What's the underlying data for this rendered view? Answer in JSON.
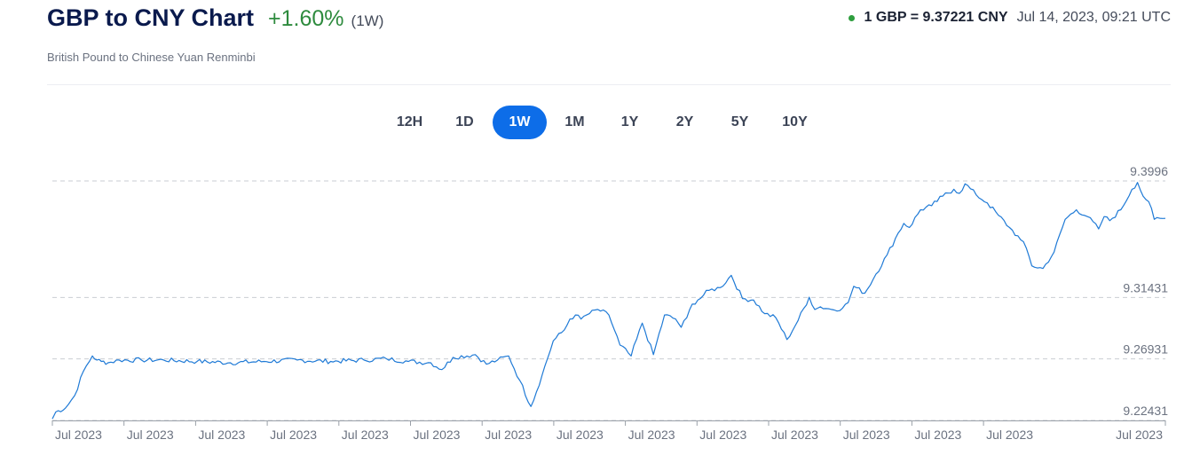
{
  "header": {
    "title": "GBP to CNY Chart",
    "change": "+1.60%",
    "period": "(1W)",
    "subtitle": "British Pound to Chinese Yuan Renminbi"
  },
  "rate": {
    "text": "1 GBP = 9.37221 CNY",
    "timestamp": "Jul 14, 2023, 09:21 UTC",
    "status_color": "#2e9e3e"
  },
  "ranges": [
    {
      "label": "12H",
      "active": false
    },
    {
      "label": "1D",
      "active": false
    },
    {
      "label": "1W",
      "active": true
    },
    {
      "label": "1M",
      "active": false
    },
    {
      "label": "1Y",
      "active": false
    },
    {
      "label": "2Y",
      "active": false
    },
    {
      "label": "5Y",
      "active": false
    },
    {
      "label": "10Y",
      "active": false
    }
  ],
  "colors": {
    "accent": "#0d6de8",
    "line": "#1f7ad6",
    "positive": "#2e8b3e"
  },
  "chart_data": {
    "type": "line",
    "ylim": [
      9.22431,
      9.3996
    ],
    "y_tick_labels": [
      "9.3996",
      "9.31431",
      "9.26931",
      "9.22431"
    ],
    "y_tick_values": [
      9.3996,
      9.31431,
      9.26931,
      9.22431
    ],
    "x_tick_labels": [
      "Jul 2023",
      "Jul 2023",
      "Jul 2023",
      "Jul 2023",
      "Jul 2023",
      "Jul 2023",
      "Jul 2023",
      "Jul 2023",
      "Jul 2023",
      "Jul 2023",
      "Jul 2023",
      "Jul 2023",
      "Jul 2023",
      "Jul 2023",
      "Jul 2023"
    ],
    "grid": "dashed-horizontal",
    "series": [
      {
        "x": [
          0,
          0.003,
          0.012,
          0.02,
          0.028,
          0.036,
          0.04,
          0.044,
          0.05,
          0.06,
          0.08,
          0.1,
          0.13,
          0.16,
          0.19,
          0.22,
          0.25,
          0.28,
          0.3,
          0.32,
          0.34,
          0.35,
          0.36,
          0.38,
          0.39,
          0.4,
          0.41,
          0.42,
          0.43,
          0.44,
          0.45,
          0.46,
          0.465,
          0.47,
          0.475,
          0.48,
          0.49,
          0.5,
          0.51,
          0.52,
          0.53,
          0.54,
          0.55,
          0.56,
          0.565,
          0.57,
          0.575,
          0.58,
          0.59,
          0.6,
          0.61,
          0.62,
          0.63,
          0.64,
          0.65,
          0.66,
          0.67,
          0.68,
          0.685,
          0.69,
          0.7,
          0.71,
          0.715,
          0.72,
          0.73,
          0.74,
          0.75,
          0.76,
          0.765,
          0.77,
          0.78,
          0.79,
          0.8,
          0.81,
          0.815,
          0.82,
          0.83,
          0.84,
          0.85,
          0.86,
          0.87,
          0.875,
          0.88,
          0.89,
          0.9,
          0.91,
          0.92,
          0.93,
          0.94,
          0.945,
          0.95,
          0.96,
          0.97,
          0.975,
          0.98,
          0.985,
          0.99,
          1.0
        ],
        "y": [
          9.2255,
          9.2305,
          9.2335,
          9.2425,
          9.2605,
          9.2715,
          9.2685,
          9.2675,
          9.2665,
          9.2685,
          9.2685,
          9.2685,
          9.2675,
          9.2665,
          9.2675,
          9.2685,
          9.2675,
          9.2685,
          9.2695,
          9.2675,
          9.2665,
          9.2615,
          9.2705,
          9.2725,
          9.2655,
          9.2685,
          9.2715,
          9.2535,
          9.2345,
          9.2575,
          9.2825,
          9.2905,
          9.2985,
          9.3015,
          9.2985,
          9.3015,
          9.3055,
          9.3015,
          9.2795,
          9.2715,
          9.2955,
          9.2725,
          9.3015,
          9.2985,
          9.2925,
          9.2995,
          9.3095,
          9.3125,
          9.3195,
          9.3215,
          9.3305,
          9.3135,
          9.3125,
          9.3025,
          9.2995,
          9.2835,
          9.2975,
          9.3145,
          9.3055,
          9.3075,
          9.3055,
          9.3065,
          9.3105,
          9.3225,
          9.3175,
          9.3315,
          9.3455,
          9.3615,
          9.3685,
          9.3655,
          9.3785,
          9.3815,
          9.3885,
          9.3935,
          9.3905,
          9.3975,
          9.3895,
          9.3835,
          9.3745,
          9.3655,
          9.3565,
          9.3505,
          9.3375,
          9.3355,
          9.3475,
          9.3715,
          9.3785,
          9.3735,
          9.3645,
          9.3735,
          9.3705,
          9.3785,
          9.3935,
          9.3985,
          9.3885,
          9.3845,
          9.3715,
          9.3722
        ]
      }
    ]
  }
}
